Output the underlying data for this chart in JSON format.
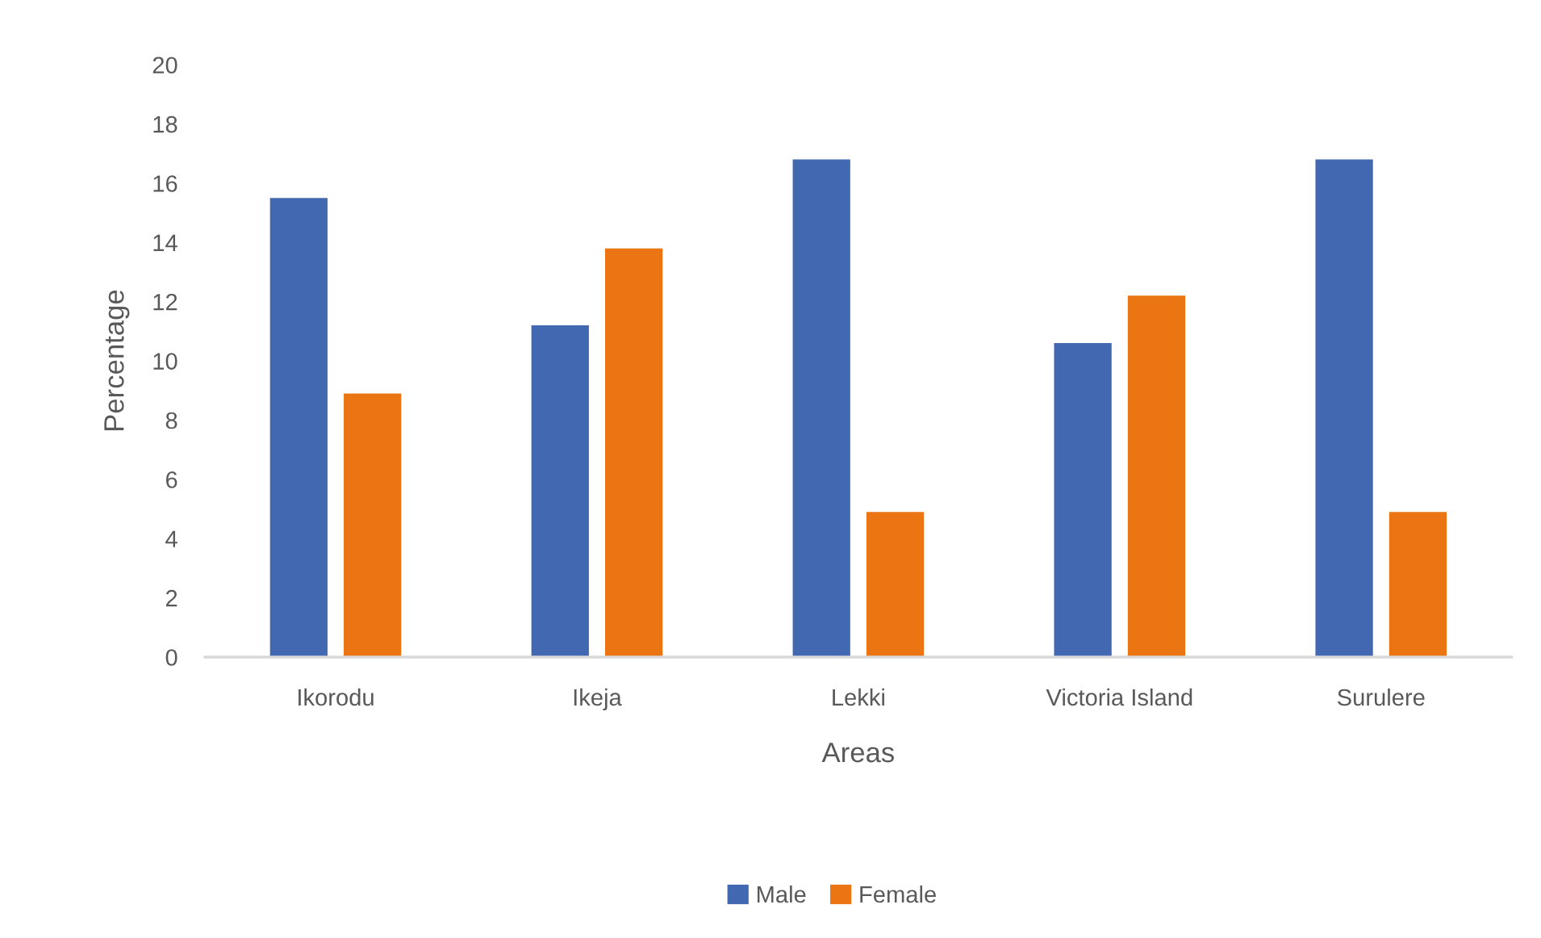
{
  "chart_data": {
    "type": "bar",
    "xlabel": "Areas",
    "ylabel": "Percentage",
    "categories": [
      "Ikorodu",
      "Ikeja",
      "Lekki",
      "Victoria Island",
      "Surulere"
    ],
    "series": [
      {
        "name": "Male",
        "color": "#4168b1",
        "values": [
          15.5,
          11.2,
          16.8,
          10.6,
          16.8
        ]
      },
      {
        "name": "Female",
        "color": "#ea7512",
        "values": [
          8.9,
          13.8,
          4.9,
          12.2,
          4.9
        ]
      }
    ],
    "ylim": [
      0,
      20
    ],
    "yticks": [
      0,
      2,
      4,
      6,
      8,
      10,
      12,
      14,
      16,
      18,
      20
    ],
    "grid": false,
    "legend": "bottom"
  }
}
